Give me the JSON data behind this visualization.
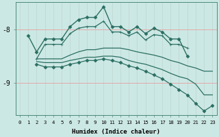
{
  "xlabel": "Humidex (Indice chaleur)",
  "ylabel": "",
  "bg_color": "#cce8e4",
  "line_color": "#2a6e62",
  "grid_color_v": "#c8e0dc",
  "grid_color_h": "#e8b8b8",
  "xlim": [
    -0.5,
    23.5
  ],
  "ylim": [
    -9.6,
    -7.5
  ],
  "yticks": [
    -9,
    -8
  ],
  "xticks": [
    0,
    1,
    2,
    3,
    4,
    5,
    6,
    7,
    8,
    9,
    10,
    11,
    12,
    13,
    14,
    15,
    16,
    17,
    18,
    19,
    20,
    21,
    22,
    23
  ],
  "lines": [
    {
      "x": [
        1,
        2,
        3,
        4,
        5,
        6,
        7,
        8,
        9,
        10,
        11,
        12,
        13,
        14,
        15,
        16,
        17,
        18,
        19,
        20
      ],
      "y": [
        -8.12,
        -8.42,
        -8.18,
        -8.18,
        -8.18,
        -7.95,
        -7.82,
        -7.78,
        -7.78,
        -7.58,
        -7.95,
        -7.95,
        -8.05,
        -7.95,
        -8.08,
        -7.98,
        -8.05,
        -8.18,
        -8.18,
        -8.5
      ],
      "marker": "D",
      "markersize": 2.5,
      "lw": 1.0
    },
    {
      "x": [
        2,
        3,
        4,
        5,
        6,
        7,
        8,
        9,
        10,
        11,
        12,
        13,
        14,
        15,
        16,
        17,
        18,
        19,
        20
      ],
      "y": [
        -8.55,
        -8.28,
        -8.28,
        -8.28,
        -8.08,
        -7.98,
        -7.95,
        -7.95,
        -7.85,
        -8.05,
        -8.05,
        -8.12,
        -8.05,
        -8.2,
        -8.1,
        -8.12,
        -8.28,
        -8.28,
        -8.35
      ],
      "marker": "+",
      "markersize": 3.5,
      "lw": 0.9
    },
    {
      "x": [
        2,
        3,
        4,
        5,
        6,
        7,
        8,
        9,
        10,
        11,
        12,
        13,
        14,
        15,
        16,
        17,
        18,
        19,
        20,
        21,
        22,
        23
      ],
      "y": [
        -8.55,
        -8.55,
        -8.55,
        -8.55,
        -8.48,
        -8.42,
        -8.38,
        -8.38,
        -8.35,
        -8.35,
        -8.35,
        -8.38,
        -8.42,
        -8.45,
        -8.48,
        -8.52,
        -8.58,
        -8.62,
        -8.68,
        -8.72,
        -8.78,
        -8.78
      ],
      "marker": null,
      "markersize": 0,
      "lw": 0.9
    },
    {
      "x": [
        2,
        3,
        4,
        5,
        6,
        7,
        8,
        9,
        10,
        11,
        12,
        13,
        14,
        15,
        16,
        17,
        18,
        19,
        20,
        21,
        22,
        23
      ],
      "y": [
        -8.6,
        -8.62,
        -8.62,
        -8.62,
        -8.58,
        -8.55,
        -8.52,
        -8.52,
        -8.5,
        -8.5,
        -8.52,
        -8.58,
        -8.62,
        -8.65,
        -8.7,
        -8.75,
        -8.82,
        -8.88,
        -8.92,
        -9.02,
        -9.22,
        -9.22
      ],
      "marker": null,
      "markersize": 0,
      "lw": 0.9
    },
    {
      "x": [
        2,
        3,
        4,
        5,
        6,
        7,
        8,
        9,
        10,
        11,
        12,
        13,
        14,
        15,
        16,
        17,
        18,
        19,
        20,
        21,
        22,
        23
      ],
      "y": [
        -8.65,
        -8.7,
        -8.7,
        -8.7,
        -8.65,
        -8.62,
        -8.58,
        -8.58,
        -8.55,
        -8.58,
        -8.62,
        -8.68,
        -8.72,
        -8.78,
        -8.85,
        -8.92,
        -9.02,
        -9.12,
        -9.22,
        -9.38,
        -9.52,
        -9.42
      ],
      "marker": "D",
      "markersize": 2.5,
      "lw": 0.9
    }
  ]
}
